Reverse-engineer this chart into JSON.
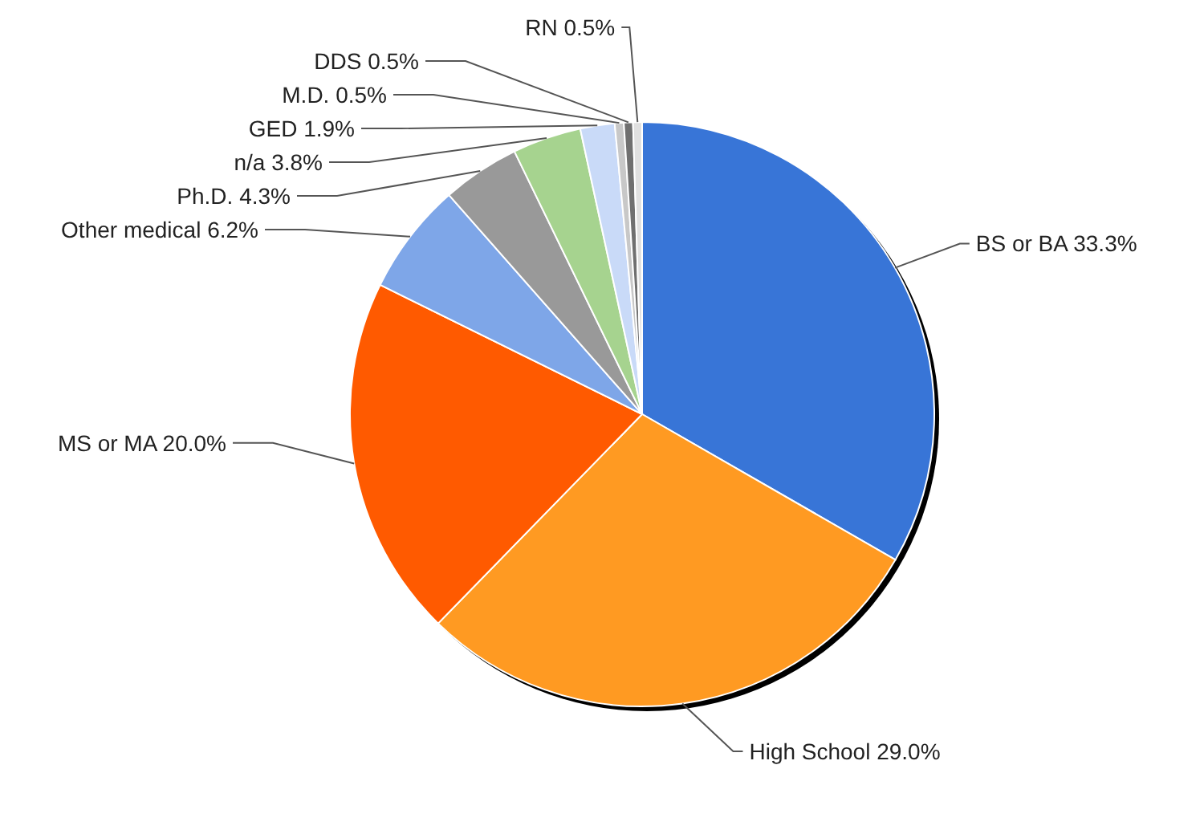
{
  "chart_data": {
    "type": "pie",
    "categories": [
      "BS or BA",
      "High School",
      "MS or MA",
      "Other medical",
      "Ph.D.",
      "n/a",
      "GED",
      "M.D.",
      "DDS",
      "RN"
    ],
    "values": [
      33.3,
      29.0,
      20.0,
      6.2,
      4.3,
      3.8,
      1.9,
      0.5,
      0.5,
      0.5
    ],
    "colors": [
      "#3875d7",
      "#ff9a22",
      "#ff5a00",
      "#7ea6e8",
      "#999999",
      "#a6d38f",
      "#c9daf8",
      "#c8c8c8",
      "#707070",
      "#e0e0e0"
    ],
    "value_labels": [
      "33.3%",
      "29.0%",
      "20.0%",
      "6.2%",
      "4.3%",
      "3.8%",
      "1.9%",
      "0.5%",
      "0.5%",
      "0.5%"
    ]
  }
}
